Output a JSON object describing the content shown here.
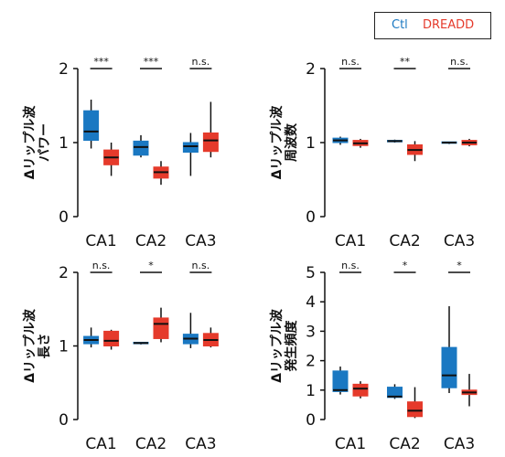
{
  "colors": {
    "ctl": "#1a78c2",
    "dreadd": "#e53a2b",
    "axis": "#111111"
  },
  "legend": {
    "ctl_label": "Ctl",
    "dreadd_label": "DREADD"
  },
  "chart_data": [
    {
      "type": "box",
      "ylabel": "Δリップル波\nパワー",
      "ylim": [
        0,
        2
      ],
      "yticks": [
        "0",
        "1",
        "2"
      ],
      "categories": [
        "CA1",
        "CA2",
        "CA3"
      ],
      "significance": [
        "***",
        "***",
        "n.s."
      ],
      "series": [
        {
          "name": "Ctl",
          "boxes": [
            {
              "min": 0.92,
              "q1": 1.03,
              "median": 1.15,
              "q3": 1.43,
              "max": 1.58
            },
            {
              "min": 0.8,
              "q1": 0.83,
              "median": 0.94,
              "q3": 1.02,
              "max": 1.1
            },
            {
              "min": 0.55,
              "q1": 0.87,
              "median": 0.95,
              "q3": 1.0,
              "max": 1.13
            }
          ]
        },
        {
          "name": "DREADD",
          "boxes": [
            {
              "min": 0.55,
              "q1": 0.7,
              "median": 0.8,
              "q3": 0.9,
              "max": 1.0
            },
            {
              "min": 0.43,
              "q1": 0.52,
              "median": 0.6,
              "q3": 0.67,
              "max": 0.75
            },
            {
              "min": 0.8,
              "q1": 0.88,
              "median": 1.03,
              "q3": 1.13,
              "max": 1.55
            }
          ]
        }
      ]
    },
    {
      "type": "box",
      "ylabel": "Δリップル波\n周波数",
      "ylim": [
        0,
        2
      ],
      "yticks": [
        "0",
        "1",
        "2"
      ],
      "categories": [
        "CA1",
        "CA2",
        "CA3"
      ],
      "significance": [
        "n.s.",
        "**",
        "n.s."
      ],
      "series": [
        {
          "name": "Ctl",
          "boxes": [
            {
              "min": 0.97,
              "q1": 1.0,
              "median": 1.03,
              "q3": 1.06,
              "max": 1.08
            },
            {
              "min": 1.0,
              "q1": 1.01,
              "median": 1.02,
              "q3": 1.03,
              "max": 1.04
            },
            {
              "min": 0.98,
              "q1": 0.99,
              "median": 1.0,
              "q3": 1.01,
              "max": 1.01
            }
          ]
        },
        {
          "name": "DREADD",
          "boxes": [
            {
              "min": 0.93,
              "q1": 0.96,
              "median": 0.99,
              "q3": 1.03,
              "max": 1.05
            },
            {
              "min": 0.75,
              "q1": 0.84,
              "median": 0.9,
              "q3": 0.97,
              "max": 1.02
            },
            {
              "min": 0.95,
              "q1": 0.97,
              "median": 1.0,
              "q3": 1.03,
              "max": 1.05
            }
          ]
        }
      ]
    },
    {
      "type": "box",
      "ylabel": "Δリップル波\n長さ",
      "ylim": [
        0,
        2
      ],
      "yticks": [
        "0",
        "1",
        "2"
      ],
      "categories": [
        "CA1",
        "CA2",
        "CA3"
      ],
      "significance": [
        "n.s.",
        "*",
        "n.s."
      ],
      "series": [
        {
          "name": "Ctl",
          "boxes": [
            {
              "min": 0.98,
              "q1": 1.03,
              "median": 1.08,
              "q3": 1.13,
              "max": 1.25
            },
            {
              "min": 1.02,
              "q1": 1.03,
              "median": 1.04,
              "q3": 1.05,
              "max": 1.05
            },
            {
              "min": 0.97,
              "q1": 1.03,
              "median": 1.1,
              "q3": 1.16,
              "max": 1.45
            }
          ]
        },
        {
          "name": "DREADD",
          "boxes": [
            {
              "min": 0.95,
              "q1": 1.0,
              "median": 1.07,
              "q3": 1.2,
              "max": 1.22
            },
            {
              "min": 1.05,
              "q1": 1.1,
              "median": 1.3,
              "q3": 1.38,
              "max": 1.52
            },
            {
              "min": 0.98,
              "q1": 1.0,
              "median": 1.08,
              "q3": 1.17,
              "max": 1.25
            }
          ]
        }
      ]
    },
    {
      "type": "box",
      "ylabel": "Δリップル波\n発生頻度",
      "ylim": [
        0,
        5
      ],
      "yticks": [
        "0",
        "1",
        "2",
        "3",
        "4",
        "5"
      ],
      "categories": [
        "CA1",
        "CA2",
        "CA3"
      ],
      "significance": [
        "n.s.",
        "*",
        "*"
      ],
      "series": [
        {
          "name": "Ctl",
          "boxes": [
            {
              "min": 0.85,
              "q1": 0.95,
              "median": 1.0,
              "q3": 1.65,
              "max": 1.8
            },
            {
              "min": 0.7,
              "q1": 0.75,
              "median": 0.78,
              "q3": 1.1,
              "max": 1.2
            },
            {
              "min": 0.9,
              "q1": 1.08,
              "median": 1.5,
              "q3": 2.45,
              "max": 3.85
            }
          ]
        },
        {
          "name": "DREADD",
          "boxes": [
            {
              "min": 0.72,
              "q1": 0.8,
              "median": 1.05,
              "q3": 1.2,
              "max": 1.3
            },
            {
              "min": 0.05,
              "q1": 0.1,
              "median": 0.3,
              "q3": 0.6,
              "max": 1.1
            },
            {
              "min": 0.45,
              "q1": 0.85,
              "median": 0.92,
              "q3": 1.0,
              "max": 1.55
            }
          ]
        }
      ]
    }
  ]
}
